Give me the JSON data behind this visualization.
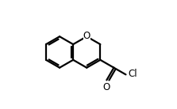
{
  "bg_color": "#ffffff",
  "line_color": "#000000",
  "line_width": 1.6,
  "dbo": 0.012,
  "figsize": [
    2.23,
    1.38
  ],
  "dpi": 100,
  "xlim": [
    0.0,
    1.0
  ],
  "ylim": [
    0.05,
    0.95
  ]
}
